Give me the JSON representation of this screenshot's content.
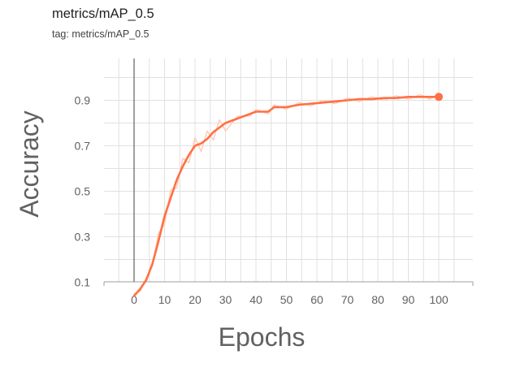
{
  "header": {
    "title": "metrics/mAP_0.5",
    "tag": "tag: metrics/mAP_0.5"
  },
  "chart_data": {
    "type": "line",
    "title": "metrics/mAP_0.5",
    "xlabel": "Epochs",
    "ylabel": "Accuracy",
    "xlim": [
      -10,
      110
    ],
    "ylim": [
      0.0,
      1.0
    ],
    "xticks": [
      0,
      10,
      20,
      30,
      40,
      50,
      60,
      70,
      80,
      90,
      100
    ],
    "yticks": [
      0.1,
      0.3,
      0.5,
      0.7,
      0.9
    ],
    "xtick_labels": [
      "0",
      "10",
      "20",
      "30",
      "40",
      "50",
      "60",
      "70",
      "80",
      "90",
      "100"
    ],
    "ytick_labels": [
      "0.1",
      "0.3",
      "0.5",
      "0.7",
      "0.9"
    ],
    "grid": true,
    "colors": {
      "line": "#ff7043",
      "raw": "#ffcab4",
      "grid": "#e0e0e0",
      "zero_axis": "#616161"
    },
    "series": [
      {
        "x": [
          0,
          2,
          4,
          6,
          8,
          10,
          12,
          14,
          16,
          18,
          20,
          22,
          24,
          26,
          28,
          30,
          34,
          38,
          40,
          44,
          46,
          50,
          54,
          58,
          62,
          66,
          70,
          74,
          78,
          82,
          86,
          90,
          94,
          97,
          100
        ],
        "values": [
          0.04,
          0.07,
          0.11,
          0.18,
          0.28,
          0.39,
          0.47,
          0.55,
          0.61,
          0.66,
          0.7,
          0.71,
          0.73,
          0.76,
          0.78,
          0.8,
          0.82,
          0.84,
          0.85,
          0.85,
          0.87,
          0.87,
          0.88,
          0.885,
          0.89,
          0.895,
          0.9,
          0.905,
          0.905,
          0.91,
          0.91,
          0.915,
          0.915,
          0.915,
          0.915
        ]
      }
    ]
  }
}
